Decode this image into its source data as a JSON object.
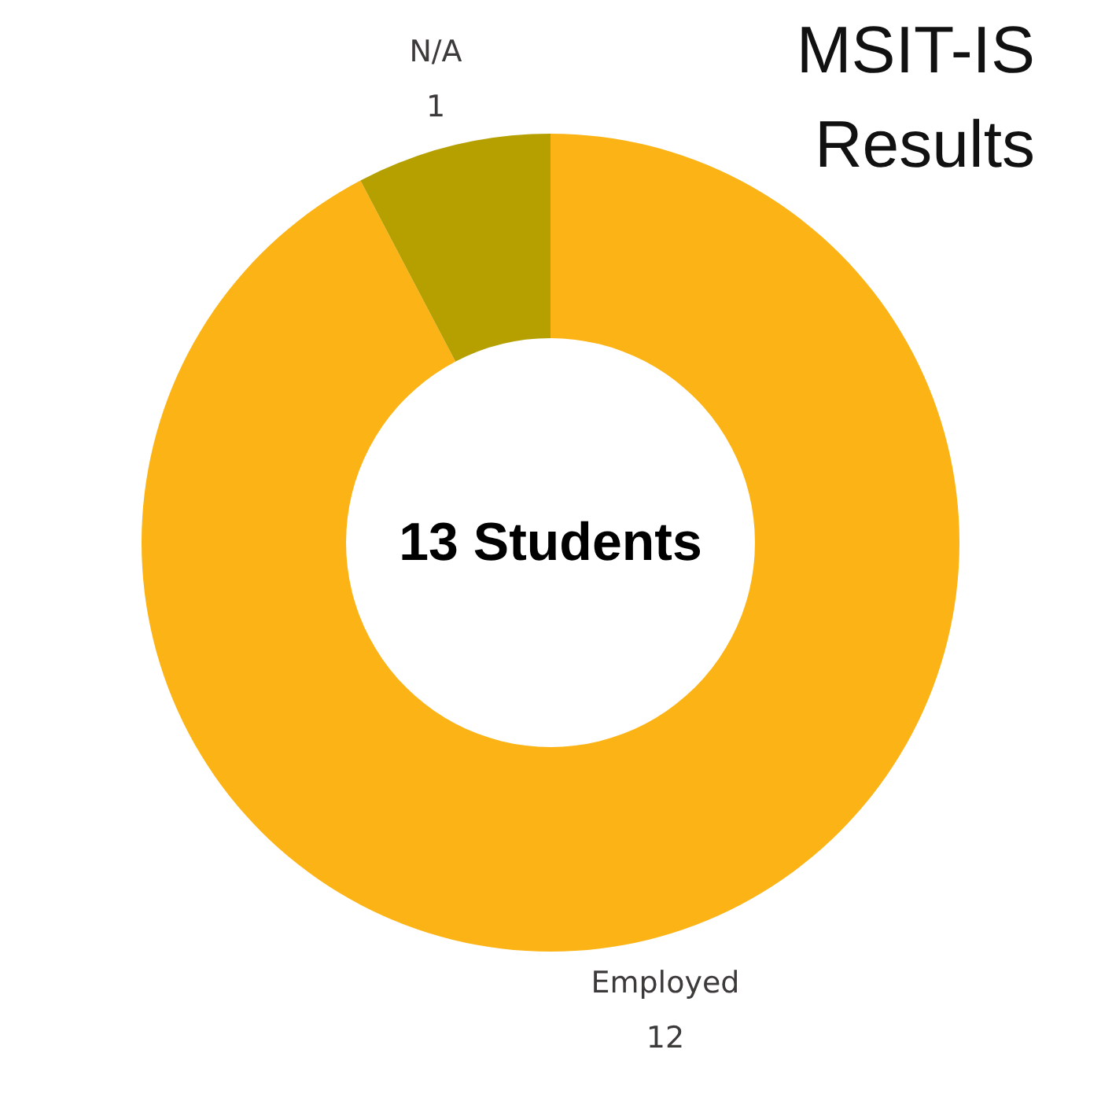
{
  "chart_data": {
    "type": "donut",
    "title": "MSIT-IS Results",
    "categories": [
      "Employed",
      "N/A"
    ],
    "values": [
      12,
      1
    ],
    "colors": [
      "#fbb315",
      "#b5a000"
    ],
    "data_labels": true,
    "annotations": [
      "13 Students"
    ]
  }
}
